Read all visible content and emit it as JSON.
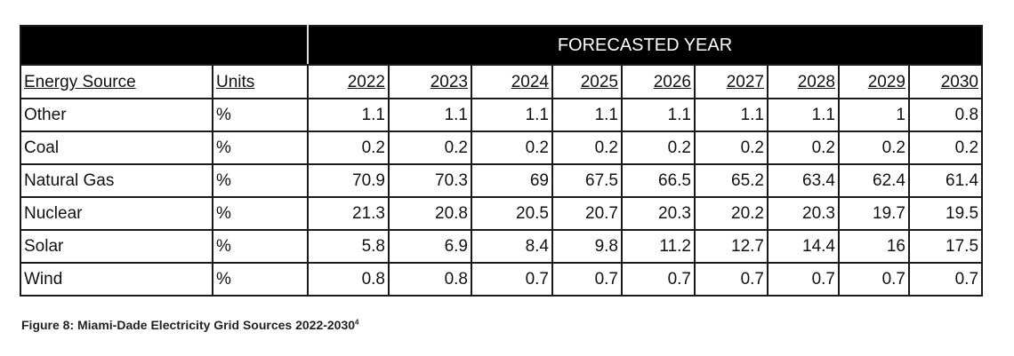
{
  "table": {
    "band_label": "FORECASTED YEAR",
    "headers": [
      "Energy Source",
      "Units",
      "2022",
      "2023",
      "2024",
      "2025",
      "2026",
      "2027",
      "2028",
      "2029",
      "2030"
    ],
    "rows": [
      {
        "source": "Other",
        "units": "%",
        "values": [
          "1.1",
          "1.1",
          "1.1",
          "1.1",
          "1.1",
          "1.1",
          "1.1",
          "1",
          "0.8"
        ]
      },
      {
        "source": "Coal",
        "units": "%",
        "values": [
          "0.2",
          "0.2",
          "0.2",
          "0.2",
          "0.2",
          "0.2",
          "0.2",
          "0.2",
          "0.2"
        ]
      },
      {
        "source": "Natural Gas",
        "units": "%",
        "values": [
          "70.9",
          "70.3",
          "69",
          "67.5",
          "66.5",
          "65.2",
          "63.4",
          "62.4",
          "61.4"
        ]
      },
      {
        "source": "Nuclear",
        "units": "%",
        "values": [
          "21.3",
          "20.8",
          "20.5",
          "20.7",
          "20.3",
          "20.2",
          "20.3",
          "19.7",
          "19.5"
        ]
      },
      {
        "source": "Solar",
        "units": "%",
        "values": [
          "5.8",
          "6.9",
          "8.4",
          "9.8",
          "11.2",
          "12.7",
          "14.4",
          "16",
          "17.5"
        ]
      },
      {
        "source": "Wind",
        "units": "%",
        "values": [
          "0.8",
          "0.8",
          "0.7",
          "0.7",
          "0.7",
          "0.7",
          "0.7",
          "0.7",
          "0.7"
        ]
      }
    ]
  },
  "caption": {
    "text": "Figure 8: Miami-Dade Electricity Grid Sources 2022-2030",
    "footnote": "4"
  }
}
